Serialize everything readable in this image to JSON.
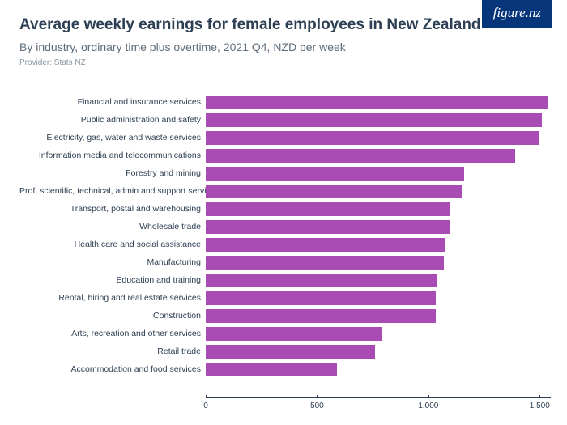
{
  "logo": "figure.nz",
  "title": "Average weekly earnings for female employees in New Zealand",
  "subtitle": "By industry, ordinary time plus overtime, 2021 Q4, NZD per week",
  "provider": "Provider: Stats NZ",
  "chart": {
    "type": "bar-horizontal",
    "bar_color": "#a84bb3",
    "axis_color": "#2d3f53",
    "label_color": "#2d3f53",
    "label_fontsize": 10.5,
    "tick_fontsize": 10,
    "background_color": "#ffffff",
    "xlim": [
      0,
      1550
    ],
    "xticks": [
      0,
      500,
      1000,
      1500
    ],
    "xtick_labels": [
      "0",
      "500",
      "1,000",
      "1,500"
    ],
    "categories": [
      "Financial and insurance services",
      "Public administration and safety",
      "Electricity, gas, water and waste services",
      "Information media and telecommunications",
      "Forestry and mining",
      "Prof, scientific, technical, admin and support services",
      "Transport, postal and warehousing",
      "Wholesale trade",
      "Health care and social assistance",
      "Manufacturing",
      "Education and training",
      "Rental, hiring and real estate services",
      "Construction",
      "Arts, recreation and other services",
      "Retail trade",
      "Accommodation and food services"
    ],
    "values": [
      1540,
      1510,
      1500,
      1390,
      1160,
      1150,
      1100,
      1095,
      1075,
      1070,
      1040,
      1035,
      1035,
      790,
      760,
      590
    ]
  }
}
